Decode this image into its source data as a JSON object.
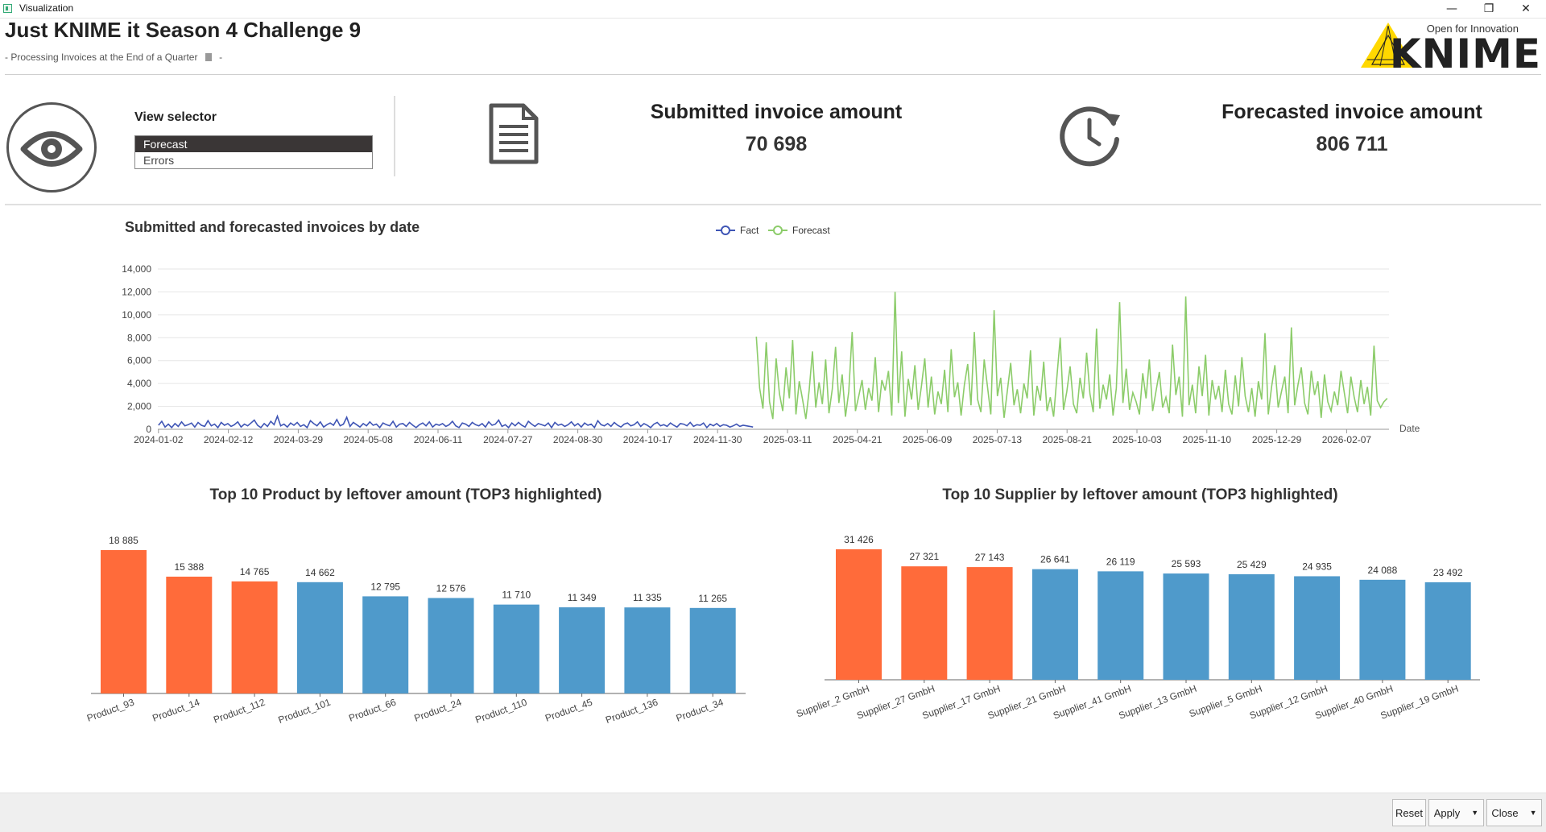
{
  "window": {
    "title": "Visualization",
    "minimize_glyph": "—",
    "restore_glyph": "❐",
    "close_glyph": "✕"
  },
  "header": {
    "title": "Just KNIME it Season 4 Challenge 9",
    "subtitle": "- Processing Invoices at the End of a Quarter",
    "subtitle_end": "-",
    "logo_tagline": "Open for Innovation",
    "logo_word": "KNIME"
  },
  "view_selector": {
    "label": "View selector",
    "options": [
      "Forecast",
      "Errors"
    ],
    "selected": "Forecast"
  },
  "kpis": {
    "submitted": {
      "title": "Submitted invoice amount",
      "value": "70 698",
      "icon": "document-icon"
    },
    "forecasted": {
      "title": "Forecasted invoice amount",
      "value": "806 711",
      "icon": "clock-icon"
    }
  },
  "colors": {
    "fact": "#3f55b5",
    "forecast": "#8ccc6a",
    "top3": "#ff6b3a",
    "other": "#4f9acb"
  },
  "chart_data": [
    {
      "type": "line",
      "title": "Submitted and forecasted invoices by date",
      "xlabel": "Date",
      "ylabel": "",
      "ylim": [
        0,
        14000
      ],
      "yticks": [
        "0",
        "2,000",
        "4,000",
        "6,000",
        "8,000",
        "10,000",
        "12,000",
        "14,000"
      ],
      "xticks": [
        "2024-01-02",
        "2024-02-12",
        "2024-03-29",
        "2024-05-08",
        "2024-06-11",
        "2024-07-27",
        "2024-08-30",
        "2024-10-17",
        "2024-11-30",
        "2025-03-11",
        "2025-04-21",
        "2025-06-09",
        "2025-07-13",
        "2025-08-21",
        "2025-10-03",
        "2025-11-10",
        "2025-12-29",
        "2026-02-07"
      ],
      "legend": "top-center",
      "series": [
        {
          "name": "Fact",
          "values": [
            350,
            700,
            200,
            450,
            150,
            500,
            250,
            650,
            300,
            400,
            550,
            200,
            600,
            350,
            250,
            750,
            300,
            450,
            150,
            600,
            350,
            500,
            250,
            400,
            650,
            200,
            450,
            300,
            550,
            800,
            350,
            150,
            500,
            250,
            700,
            400,
            1150,
            300,
            450,
            200,
            550,
            350,
            600,
            250,
            400,
            150,
            750,
            500,
            300,
            650,
            200,
            400,
            550,
            350,
            850,
            300,
            450,
            1050,
            250,
            600,
            400,
            200,
            500,
            300,
            650,
            350,
            450,
            150,
            550,
            400,
            300,
            700,
            200,
            450,
            500,
            250,
            600,
            350,
            150,
            400,
            550,
            300,
            650,
            200,
            450,
            350,
            500,
            250,
            400,
            700,
            300,
            150,
            550,
            450,
            250,
            600,
            400,
            300,
            500,
            200,
            650,
            350,
            450,
            800,
            250,
            400,
            150,
            550,
            300,
            600,
            350,
            200,
            700,
            450,
            250,
            500,
            400,
            300,
            550,
            150,
            600,
            350,
            450,
            250,
            400,
            650,
            300,
            500,
            200,
            550,
            350,
            450,
            150,
            750,
            400,
            300,
            500,
            250,
            600,
            350,
            200,
            450,
            550,
            300,
            400,
            650,
            250,
            500,
            350,
            150,
            450,
            600,
            300,
            400,
            250,
            550,
            350,
            200,
            500,
            450,
            300,
            600,
            250,
            400,
            350,
            550,
            150,
            450,
            300,
            500,
            250,
            400,
            350,
            200,
            300,
            450,
            250,
            350,
            300,
            250,
            200
          ]
        },
        {
          "name": "Forecast",
          "values": [
            8100,
            3600,
            1800,
            7600,
            2400,
            900,
            6200,
            3100,
            1600,
            5400,
            2700,
            7800,
            1300,
            4200,
            2600,
            900,
            3400,
            6800,
            1900,
            4100,
            2200,
            6100,
            1400,
            3500,
            7200,
            2300,
            4800,
            1100,
            3300,
            8500,
            1600,
            2900,
            4300,
            1700,
            3600,
            2500,
            6300,
            1500,
            4300,
            3400,
            5100,
            1200,
            12000,
            2300,
            6800,
            1100,
            4400,
            2600,
            5600,
            1700,
            3800,
            6200,
            1900,
            4600,
            1300,
            3300,
            2200,
            5200,
            1500,
            7000,
            2800,
            4100,
            1200,
            3900,
            5700,
            2100,
            8500,
            2600,
            1500,
            6100,
            3700,
            1300,
            10400,
            2900,
            4500,
            1000,
            3400,
            5800,
            2100,
            3500,
            1400,
            4000,
            2700,
            6900,
            1200,
            3800,
            2500,
            5900,
            1600,
            2800,
            1100,
            4600,
            8000,
            1700,
            3300,
            5500,
            2200,
            1400,
            4500,
            2700,
            6700,
            3100,
            1500,
            8800,
            1800,
            3900,
            2600,
            4800,
            1200,
            3600,
            11100,
            2300,
            5300,
            1700,
            3200,
            2400,
            1300,
            4900,
            2700,
            6100,
            1600,
            3300,
            5000,
            1900,
            2800,
            1400,
            7400,
            3000,
            4600,
            1100,
            11600,
            2100,
            3900,
            1400,
            5500,
            2900,
            6500,
            1200,
            4300,
            2600,
            3800,
            1500,
            5200,
            2200,
            1300,
            4700,
            2000,
            6300,
            2900,
            1500,
            3600,
            1100,
            4200,
            2600,
            8400,
            1300,
            3700,
            5600,
            1900,
            3300,
            4600,
            1400,
            8900,
            2100,
            3900,
            5400,
            2300,
            1300,
            5100,
            3000,
            4200,
            1000,
            4800,
            2400,
            1600,
            3300,
            2100,
            5100,
            3200,
            1400,
            4600,
            2800,
            1500,
            4300,
            2200,
            3700,
            1200,
            7300,
            2500,
            1900,
            2400,
            2700
          ]
        }
      ]
    },
    {
      "type": "bar",
      "title": "Top 10 Product by leftover amount (TOP3 highlighted)",
      "categories": [
        "Product_93",
        "Product_14",
        "Product_112",
        "Product_101",
        "Product_66",
        "Product_24",
        "Product_110",
        "Product_45",
        "Product_136",
        "Product_34"
      ],
      "values": [
        18885,
        15388,
        14765,
        14662,
        12795,
        12576,
        11710,
        11349,
        11335,
        11265
      ],
      "labels": [
        "18 885",
        "15 388",
        "14 765",
        "14 662",
        "12 795",
        "12 576",
        "11 710",
        "11 349",
        "11 335",
        "11 265"
      ],
      "highlighted_top": 3
    },
    {
      "type": "bar",
      "title": "Top 10 Supplier by leftover amount (TOP3 highlighted)",
      "categories": [
        "Supplier_2 GmbH",
        "Supplier_27 GmbH",
        "Supplier_17 GmbH",
        "Supplier_21 GmbH",
        "Supplier_41 GmbH",
        "Supplier_13 GmbH",
        "Supplier_5 GmbH",
        "Supplier_12 GmbH",
        "Supplier_40 GmbH",
        "Supplier_19 GmbH"
      ],
      "values": [
        31426,
        27321,
        27143,
        26641,
        26119,
        25593,
        25429,
        24935,
        24088,
        23492
      ],
      "labels": [
        "31 426",
        "27 321",
        "27 143",
        "26 641",
        "26 119",
        "25 593",
        "25 429",
        "24 935",
        "24 088",
        "23 492"
      ],
      "highlighted_top": 3
    }
  ],
  "footer": {
    "reset": "Reset",
    "apply": "Apply",
    "close": "Close",
    "caret": "▼"
  }
}
